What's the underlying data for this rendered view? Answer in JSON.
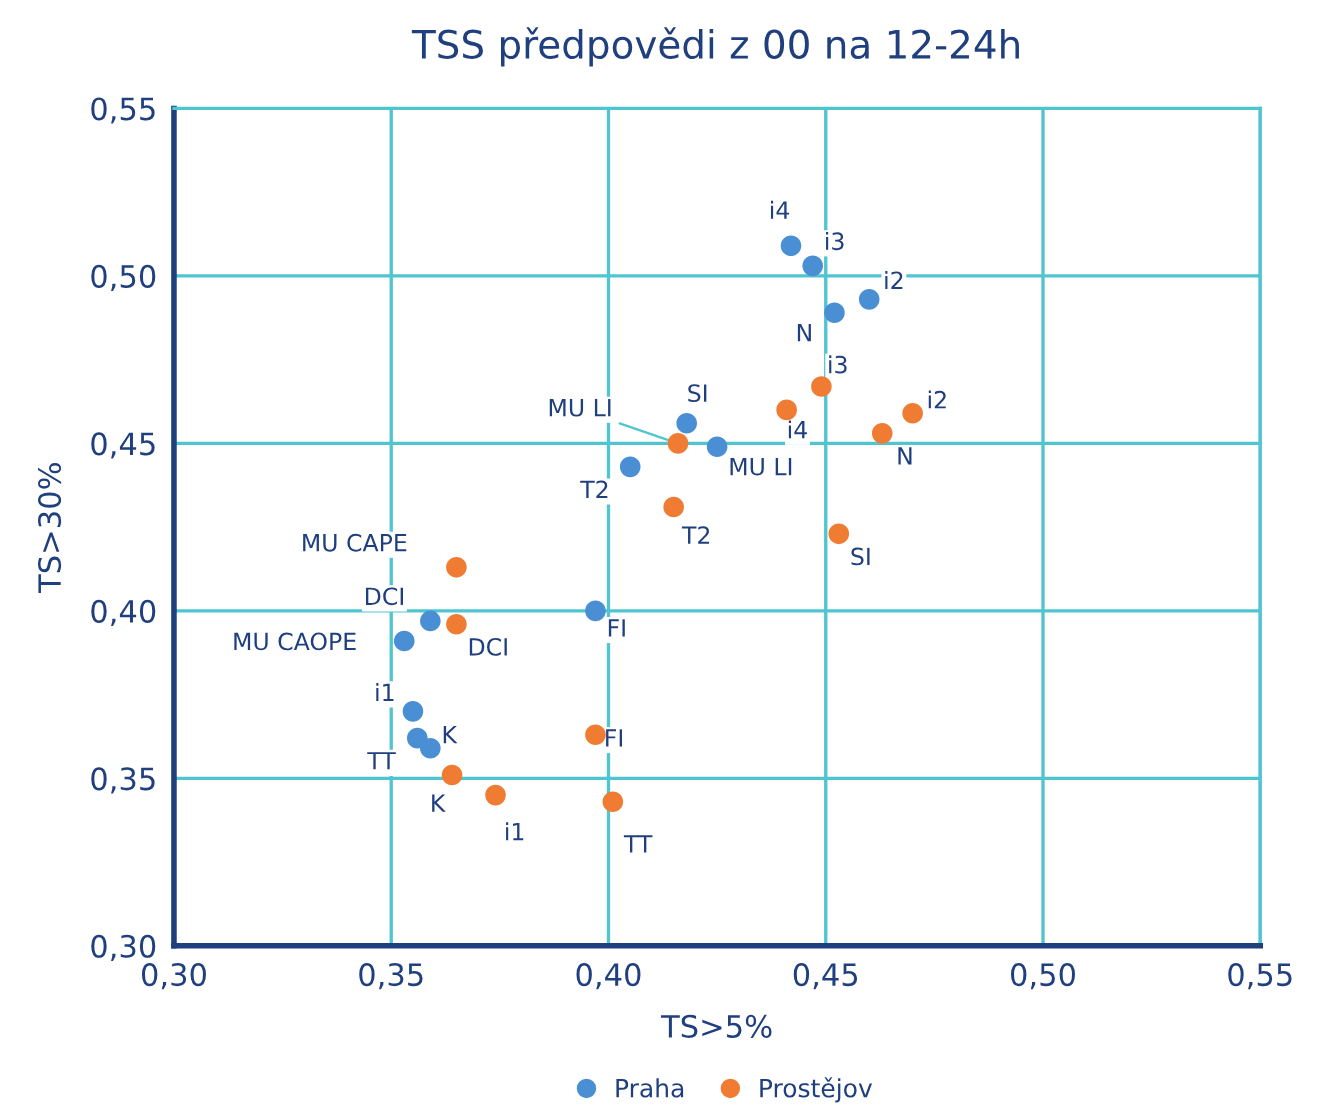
{
  "chart_data": {
    "type": "scatter",
    "title": "TSS předpovědi z 00 na 12-24h",
    "xlabel": "TS>5%",
    "ylabel": "TS>30%",
    "xlim": [
      0.3,
      0.55
    ],
    "ylim": [
      0.3,
      0.55
    ],
    "xticks": [
      {
        "value": 0.3,
        "label": "0,30"
      },
      {
        "value": 0.35,
        "label": "0,35"
      },
      {
        "value": 0.4,
        "label": "0,40"
      },
      {
        "value": 0.45,
        "label": "0,45"
      },
      {
        "value": 0.5,
        "label": "0,50"
      },
      {
        "value": 0.55,
        "label": "0,55"
      }
    ],
    "yticks": [
      {
        "value": 0.3,
        "label": "0,30"
      },
      {
        "value": 0.35,
        "label": "0,35"
      },
      {
        "value": 0.4,
        "label": "0,40"
      },
      {
        "value": 0.45,
        "label": "0,45"
      },
      {
        "value": 0.5,
        "label": "0,50"
      },
      {
        "value": 0.55,
        "label": "0,55"
      }
    ],
    "grid": true,
    "legend": "bottom",
    "marker": "circle",
    "series": [
      {
        "name": "Praha",
        "color": "#4a8fd4",
        "x": [
          0.442,
          0.447,
          0.46,
          0.452,
          0.418,
          0.425,
          0.405,
          0.397,
          0.359,
          0.353,
          0.355,
          0.356,
          0.359
        ],
        "values": [
          0.509,
          0.503,
          0.493,
          0.489,
          0.456,
          0.449,
          0.443,
          0.4,
          0.397,
          0.391,
          0.37,
          0.362,
          0.359
        ]
      },
      {
        "name": "Prostějov",
        "color": "#f07c33",
        "x": [
          0.449,
          0.441,
          0.47,
          0.463,
          0.416,
          0.415,
          0.453,
          0.365,
          0.365,
          0.397,
          0.364,
          0.374,
          0.401
        ],
        "values": [
          0.467,
          0.46,
          0.459,
          0.453,
          0.45,
          0.431,
          0.423,
          0.413,
          0.396,
          0.363,
          0.351,
          0.345,
          0.343
        ]
      }
    ],
    "annotations": [
      {
        "text": "i4",
        "x": 0.442,
        "y": 0.509
      },
      {
        "text": "i3",
        "x": 0.447,
        "y": 0.503
      },
      {
        "text": "i2",
        "x": 0.46,
        "y": 0.493
      },
      {
        "text": "N",
        "x": 0.452,
        "y": 0.489
      },
      {
        "text": "SI",
        "x": 0.418,
        "y": 0.456
      },
      {
        "text": "MU LI",
        "x": 0.425,
        "y": 0.449
      },
      {
        "text": "T2",
        "x": 0.405,
        "y": 0.443
      },
      {
        "text": "FI",
        "x": 0.397,
        "y": 0.4
      },
      {
        "text": "DCI",
        "x": 0.359,
        "y": 0.397
      },
      {
        "text": "MU CAOPE",
        "x": 0.353,
        "y": 0.391
      },
      {
        "text": "i1",
        "x": 0.355,
        "y": 0.37
      },
      {
        "text": "TT",
        "x": 0.356,
        "y": 0.362
      },
      {
        "text": "K",
        "x": 0.359,
        "y": 0.359
      },
      {
        "text": "i3",
        "x": 0.449,
        "y": 0.467
      },
      {
        "text": "i4",
        "x": 0.441,
        "y": 0.46
      },
      {
        "text": "i2",
        "x": 0.47,
        "y": 0.459
      },
      {
        "text": "N",
        "x": 0.463,
        "y": 0.453
      },
      {
        "text": "MU LI",
        "x": 0.416,
        "y": 0.45
      },
      {
        "text": "T2",
        "x": 0.415,
        "y": 0.431
      },
      {
        "text": "SI",
        "x": 0.453,
        "y": 0.423
      },
      {
        "text": "MU CAPE",
        "x": 0.365,
        "y": 0.413
      },
      {
        "text": "DCI",
        "x": 0.365,
        "y": 0.396
      },
      {
        "text": "FI",
        "x": 0.397,
        "y": 0.363
      },
      {
        "text": "K",
        "x": 0.364,
        "y": 0.351
      },
      {
        "text": "i1",
        "x": 0.374,
        "y": 0.345
      },
      {
        "text": "TT",
        "x": 0.401,
        "y": 0.343
      }
    ]
  }
}
